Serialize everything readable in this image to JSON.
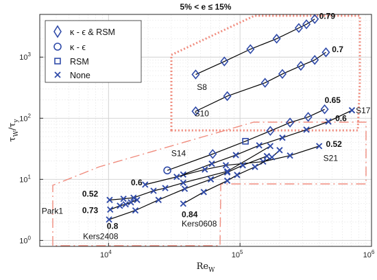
{
  "chart_data": {
    "type": "scatter",
    "title": "5% < e ≤ 15%",
    "xlabel": "Re",
    "xlabel_sub": "W",
    "ylabel_tau": "τ",
    "ylabel_sub_w": "W",
    "ylabel_slash": "/τ",
    "ylabel_sub_y": "y",
    "xscale": "log",
    "yscale": "log",
    "xlim": [
      3000,
      1000000
    ],
    "ylim": [
      0.8,
      5000
    ],
    "grid": true,
    "minor_grid": true,
    "legend_position": "top-left",
    "xticks": [
      {
        "value": 10000,
        "base": "10",
        "exp": "4"
      },
      {
        "value": 100000,
        "base": "10",
        "exp": "5"
      },
      {
        "value": 1000000,
        "base": "10",
        "exp": "6"
      }
    ],
    "yticks": [
      {
        "value": 1,
        "base": "10",
        "exp": "0"
      },
      {
        "value": 10,
        "base": "10",
        "exp": "1"
      },
      {
        "value": 100,
        "base": "10",
        "exp": "2"
      },
      {
        "value": 1000,
        "base": "10",
        "exp": "3"
      }
    ],
    "legend": [
      {
        "label": "κ - ϵ & RSM",
        "marker": "diamond"
      },
      {
        "label": "κ - ϵ",
        "marker": "circle"
      },
      {
        "label": "RSM",
        "marker": "square"
      },
      {
        "label": "None",
        "marker": "x"
      }
    ],
    "colors": {
      "marker": "#2f4aa8",
      "fit_line": "#000000",
      "region_border": "#f08c7e",
      "grid": "#d9d9d9"
    },
    "series": [
      {
        "name": "S8",
        "exponent": "0.79",
        "points": [
          {
            "x": 46000,
            "y": 520,
            "m": "diamond"
          },
          {
            "x": 76000,
            "y": 850,
            "m": "diamond"
          },
          {
            "x": 120000,
            "y": 1350,
            "m": "diamond"
          },
          {
            "x": 190000,
            "y": 2000,
            "m": "diamond"
          },
          {
            "x": 280000,
            "y": 3000,
            "m": "diamond"
          },
          {
            "x": 320000,
            "y": 3450,
            "m": "diamond"
          },
          {
            "x": 370000,
            "y": 4200,
            "m": "diamond"
          }
        ]
      },
      {
        "name": "S10",
        "exponent": "0.7",
        "points": [
          {
            "x": 46000,
            "y": 130,
            "m": "diamond"
          },
          {
            "x": 80000,
            "y": 230,
            "m": "diamond"
          },
          {
            "x": 155000,
            "y": 380,
            "m": "diamond"
          },
          {
            "x": 210000,
            "y": 530,
            "m": "diamond"
          },
          {
            "x": 290000,
            "y": 720,
            "m": "diamond"
          },
          {
            "x": 370000,
            "y": 900,
            "m": "diamond"
          },
          {
            "x": 450000,
            "y": 1200,
            "m": "diamond"
          }
        ]
      },
      {
        "name": "S17",
        "exponent": "0.65",
        "points": [
          {
            "x": 37000,
            "y": 12,
            "m": "x"
          },
          {
            "x": 61000,
            "y": 18,
            "m": "x"
          },
          {
            "x": 93000,
            "y": 25,
            "m": "x"
          },
          {
            "x": 140000,
            "y": 36,
            "m": "x"
          },
          {
            "x": 210000,
            "y": 48,
            "m": "x"
          },
          {
            "x": 320000,
            "y": 65,
            "m": "x"
          },
          {
            "x": 470000,
            "y": 88,
            "m": "x"
          },
          {
            "x": 710000,
            "y": 135,
            "m": "x"
          }
        ]
      },
      {
        "name": "S14",
        "exponent": "0.6",
        "points": [
          {
            "x": 28000,
            "y": 14,
            "m": "circle"
          },
          {
            "x": 62000,
            "y": 26,
            "m": "diamond"
          },
          {
            "x": 110000,
            "y": 42,
            "m": "square"
          },
          {
            "x": 170000,
            "y": 62,
            "m": "diamond"
          },
          {
            "x": 240000,
            "y": 85,
            "m": "diamond"
          },
          {
            "x": 330000,
            "y": 105,
            "m": "diamond"
          },
          {
            "x": 440000,
            "y": 140,
            "m": "diamond"
          }
        ]
      },
      {
        "name": "S21",
        "exponent": "0.52",
        "points": [
          {
            "x": 19000,
            "y": 8.2,
            "m": "x"
          },
          {
            "x": 33000,
            "y": 11,
            "m": "x"
          },
          {
            "x": 54000,
            "y": 14.5,
            "m": "x"
          },
          {
            "x": 78000,
            "y": 17,
            "m": "x"
          },
          {
            "x": 150000,
            "y": 19.5,
            "m": "x"
          },
          {
            "x": 240000,
            "y": 24.5,
            "m": "x"
          },
          {
            "x": 400000,
            "y": 35,
            "m": "x"
          }
        ]
      },
      {
        "name": "Park1",
        "exponent": "0.52",
        "points": [
          {
            "x": 10200,
            "y": 4.6,
            "m": "x"
          },
          {
            "x": 13000,
            "y": 4.8,
            "m": "x"
          },
          {
            "x": 15500,
            "y": 5.0,
            "m": "x"
          },
          {
            "x": 22000,
            "y": 6.5,
            "m": "x"
          },
          {
            "x": 27000,
            "y": 7.2,
            "m": "x"
          },
          {
            "x": 37000,
            "y": 8.8,
            "m": "x"
          },
          {
            "x": 80000,
            "y": 13.5,
            "m": "x"
          },
          {
            "x": 170000,
            "y": 35,
            "m": "x"
          }
        ]
      },
      {
        "name": "Kers0608",
        "exponent": "0.84",
        "points": [
          {
            "x": 37000,
            "y": 4.0,
            "m": "x"
          },
          {
            "x": 53000,
            "y": 6.2,
            "m": "x"
          },
          {
            "x": 80000,
            "y": 9.5,
            "m": "x"
          },
          {
            "x": 95000,
            "y": 11.8,
            "m": "x"
          },
          {
            "x": 130000,
            "y": 16,
            "m": "x"
          },
          {
            "x": 175000,
            "y": 23,
            "m": "x"
          },
          {
            "x": 200000,
            "y": 30,
            "m": "x"
          }
        ]
      },
      {
        "name": "Kers2408",
        "exponent": "0.8",
        "points": [
          {
            "x": 10100,
            "y": 2.2,
            "m": "x"
          },
          {
            "x": 16000,
            "y": 3.1,
            "m": "x"
          },
          {
            "x": 24000,
            "y": 4.6,
            "m": "x"
          },
          {
            "x": 38000,
            "y": 7.0,
            "m": "x"
          },
          {
            "x": 60000,
            "y": 10,
            "m": "x"
          },
          {
            "x": 80000,
            "y": 13,
            "m": "x"
          },
          {
            "x": 105000,
            "y": 17,
            "m": "x"
          },
          {
            "x": 160000,
            "y": 24,
            "m": "x"
          }
        ]
      },
      {
        "name": "0.73",
        "exponent": "0.73",
        "points": [
          {
            "x": 10300,
            "y": 3.2,
            "m": "x"
          },
          {
            "x": 12200,
            "y": 3.7,
            "m": "x"
          },
          {
            "x": 13500,
            "y": 3.9,
            "m": "x"
          },
          {
            "x": 14800,
            "y": 4.2,
            "m": "x"
          },
          {
            "x": 16500,
            "y": 4.6,
            "m": "x"
          }
        ]
      }
    ],
    "annotations": [
      {
        "text": "0.79",
        "bold": true,
        "x": 400000,
        "y": 4200
      },
      {
        "text": "0.7",
        "bold": true,
        "x": 500000,
        "y": 1200
      },
      {
        "text": "S8",
        "bold": false,
        "x": 47000,
        "y": 290
      },
      {
        "text": "S10",
        "bold": false,
        "x": 45000,
        "y": 108
      },
      {
        "text": "0.65",
        "bold": true,
        "x": 440000,
        "y": 178
      },
      {
        "text": "S17",
        "bold": false,
        "x": 760000,
        "y": 120
      },
      {
        "text": "0.6",
        "bold": true,
        "x": 530000,
        "y": 90
      },
      {
        "text": "S14",
        "bold": false,
        "x": 30000,
        "y": 24
      },
      {
        "text": "0.52",
        "bold": true,
        "x": 450000,
        "y": 34
      },
      {
        "text": "S21",
        "bold": false,
        "x": 430000,
        "y": 20
      },
      {
        "text": "0.6",
        "bold": true,
        "x": 14800,
        "y": 8
      },
      {
        "text": "0.52",
        "bold": true,
        "x": 6300,
        "y": 5.2
      },
      {
        "text": "Park1",
        "bold": false,
        "x": 3100,
        "y": 2.75
      },
      {
        "text": "0.73",
        "bold": true,
        "x": 6300,
        "y": 2.8
      },
      {
        "text": "0.8",
        "bold": true,
        "x": 9700,
        "y": 1.55
      },
      {
        "text": "Kers2408",
        "bold": false,
        "x": 6400,
        "y": 1.05
      },
      {
        "text": "0.84",
        "bold": true,
        "x": 36000,
        "y": 2.4
      },
      {
        "text": "Kers0608",
        "bold": false,
        "x": 36000,
        "y": 1.7
      }
    ]
  }
}
